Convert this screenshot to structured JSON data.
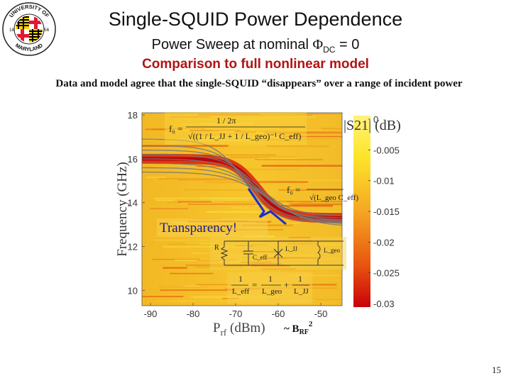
{
  "slide": {
    "title": "Single-SQUID Power Dependence",
    "subtitle_prefix": "Power Sweep at nominal ",
    "subtitle_phi": "Φ",
    "subtitle_sub": "DC",
    "subtitle_suffix": " = 0",
    "subheading": "Comparison to full nonlinear model",
    "caption": "Data and model agree that the single-SQUID “disappears” over a range of incident power",
    "page_number": "15"
  },
  "logo": {
    "top_text": "UNIVERSITY OF",
    "bottom_text": "MARYLAND",
    "year_left": "18",
    "year_right": "56",
    "colors": {
      "red": "#e21833",
      "gold": "#ffd200",
      "black": "#000000",
      "white": "#ffffff"
    }
  },
  "annotations": {
    "transparency": "Transparency!",
    "brf_prefix": "~ B",
    "brf_sub": "RF",
    "brf_sup": "2",
    "colorbar_label": "|S21| (dB)",
    "xlabel_main": "P",
    "xlabel_sub": "rf",
    "xlabel_rest": " (dBm)",
    "ylabel": "Frequency (GHz)",
    "formula1_lhs": "f₀ =",
    "formula1_num": "1 / 2π",
    "formula1_den": "√((1 / L_JJ + 1 / L_geo)⁻¹ C_eff)",
    "formula2_lhs": "f₀ =",
    "formula2_den": "√(L_geo C_eff)",
    "circuit_R": "R",
    "circuit_C": "C_eff",
    "circuit_LJJ": "L_JJ",
    "circuit_Lgeo": "L_geo",
    "formula3_lhs_num": "1",
    "formula3_lhs_den": "L_eff",
    "formula3_t1_num": "1",
    "formula3_t1_den": "L_geo",
    "formula3_t2_num": "1",
    "formula3_t2_den": "L_JJ",
    "formula_eq": "=",
    "formula_plus": "+",
    "colors": {
      "transparency_text": "#1a1a8c",
      "bracket": "#1a2fcf",
      "curve": "#777777"
    }
  },
  "chart_data": {
    "type": "heatmap",
    "xlabel": "Prf (dBm)",
    "ylabel": "Frequency (GHz)",
    "xlim": [
      -92,
      -45
    ],
    "ylim": [
      9.3,
      18.1
    ],
    "x_ticks": [
      -90,
      -80,
      -70,
      -60,
      -50
    ],
    "y_ticks": [
      10,
      12,
      14,
      16,
      18
    ],
    "colorbar": {
      "label": "|S21| (dB)",
      "ticks": [
        0,
        -0.005,
        -0.01,
        -0.015,
        -0.02,
        -0.025,
        -0.03
      ],
      "tick_labels": [
        "0",
        "-0.005",
        "-0.01",
        "-0.015",
        "-0.02",
        "-0.025",
        "-0.03"
      ],
      "range": [
        -0.03,
        0
      ],
      "colormap": [
        "#c9000a",
        "#e85510",
        "#f5a623",
        "#fde428",
        "#fff27a"
      ]
    },
    "resonance_data": {
      "flat_frequency": 16.0,
      "transition_center": -65,
      "low_frequency": 13.3
    },
    "model_curves_approx": {
      "series": [
        {
          "high": 16.9,
          "low": 13.1,
          "center": -68,
          "width": 3.5
        },
        {
          "high": 16.6,
          "low": 13.2,
          "center": -67,
          "width": 3.6
        },
        {
          "high": 16.4,
          "low": 13.3,
          "center": -66,
          "width": 3.8
        },
        {
          "high": 16.2,
          "low": 13.4,
          "center": -65,
          "width": 4.0
        },
        {
          "high": 16.0,
          "low": 13.2,
          "center": -64.5,
          "width": 4.2
        },
        {
          "high": 15.8,
          "low": 13.1,
          "center": -64,
          "width": 4.4
        },
        {
          "high": 15.6,
          "low": 13.0,
          "center": -63,
          "width": 4.6
        },
        {
          "high": 15.4,
          "low": 12.9,
          "center": -62,
          "width": 4.8
        }
      ]
    }
  }
}
